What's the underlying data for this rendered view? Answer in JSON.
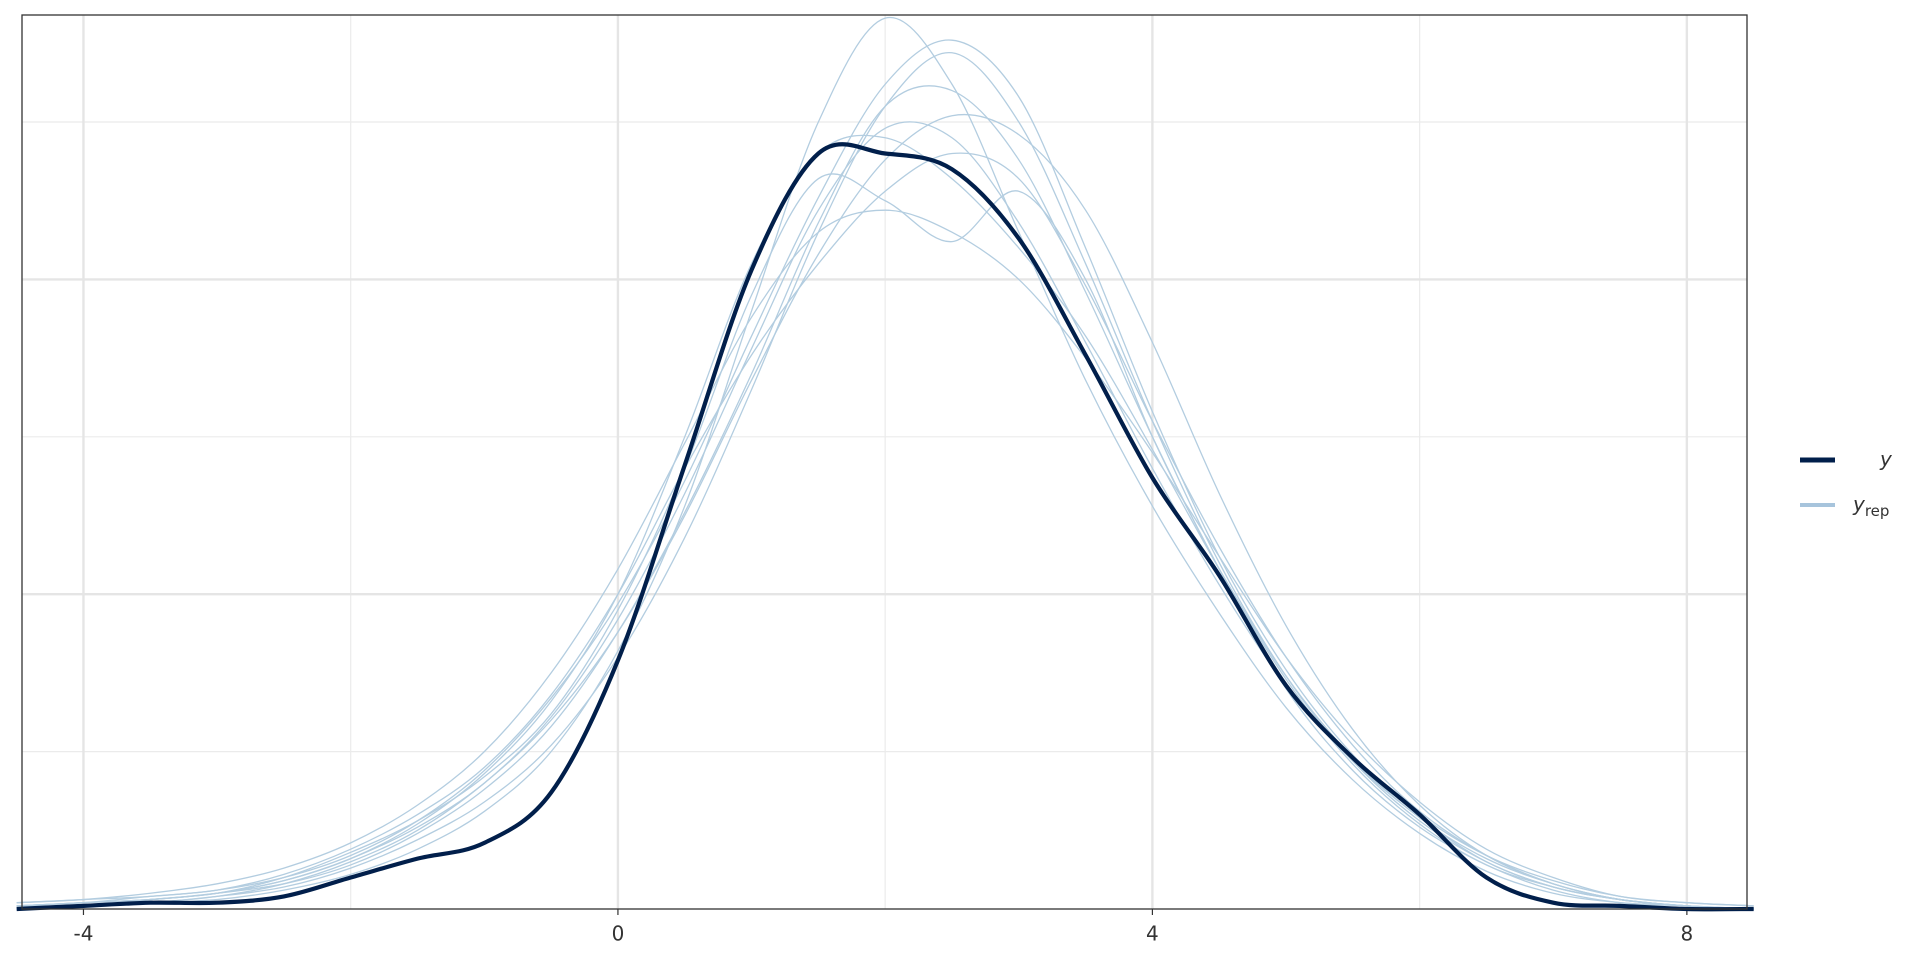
{
  "chart_data": {
    "type": "density_overlay",
    "x": [
      -4.5,
      -4,
      -3.5,
      -3,
      -2.5,
      -2,
      -1.5,
      -1,
      -0.5,
      0,
      0.5,
      1,
      1.5,
      2,
      2.5,
      3,
      3.5,
      4,
      4.5,
      5,
      5.5,
      6,
      6.5,
      7,
      7.5,
      8,
      8.5
    ],
    "xlim": [
      -4.46,
      8.45
    ],
    "xticks": [
      -4,
      0,
      4,
      8
    ],
    "xgrid_minor": [
      -2,
      2,
      6
    ],
    "ylim": [
      0,
      0.284
    ],
    "ygrid_major": [
      0.1,
      0.2
    ],
    "ygrid_minor": [
      0.05,
      0.15,
      0.25
    ],
    "legend": "right",
    "series": [
      {
        "name": "y",
        "color": "#011f4b",
        "values": [
          0,
          0.001,
          0.002,
          0.002,
          0.004,
          0.01,
          0.016,
          0.021,
          0.037,
          0.079,
          0.141,
          0.203,
          0.24,
          0.24,
          0.235,
          0.213,
          0.176,
          0.137,
          0.106,
          0.071,
          0.048,
          0.03,
          0.01,
          0.002,
          0.001,
          0,
          0
        ]
      },
      {
        "name": "y",
        "subscript": "rep",
        "color": "#b3cde0",
        "replicates": [
          [
            0.001,
            0.002,
            0.003,
            0.005,
            0.009,
            0.016,
            0.026,
            0.04,
            0.061,
            0.092,
            0.132,
            0.178,
            0.222,
            0.248,
            0.245,
            0.218,
            0.18,
            0.14,
            0.103,
            0.071,
            0.047,
            0.029,
            0.015,
            0.007,
            0.003,
            0.001,
            0.0
          ],
          [
            0.0,
            0.001,
            0.002,
            0.004,
            0.007,
            0.013,
            0.022,
            0.034,
            0.052,
            0.08,
            0.118,
            0.165,
            0.215,
            0.255,
            0.272,
            0.25,
            0.205,
            0.155,
            0.11,
            0.074,
            0.047,
            0.028,
            0.015,
            0.007,
            0.003,
            0.001,
            0.0
          ],
          [
            0.002,
            0.003,
            0.005,
            0.008,
            0.013,
            0.021,
            0.033,
            0.05,
            0.075,
            0.108,
            0.148,
            0.188,
            0.215,
            0.222,
            0.215,
            0.2,
            0.175,
            0.145,
            0.112,
            0.08,
            0.054,
            0.034,
            0.019,
            0.01,
            0.004,
            0.002,
            0.001
          ],
          [
            0.001,
            0.001,
            0.003,
            0.005,
            0.01,
            0.018,
            0.028,
            0.042,
            0.062,
            0.095,
            0.14,
            0.195,
            0.232,
            0.225,
            0.212,
            0.228,
            0.2,
            0.15,
            0.108,
            0.07,
            0.044,
            0.026,
            0.014,
            0.006,
            0.002,
            0.001,
            0.0
          ],
          [
            0.0,
            0.001,
            0.002,
            0.003,
            0.006,
            0.011,
            0.019,
            0.031,
            0.05,
            0.082,
            0.128,
            0.19,
            0.25,
            0.283,
            0.262,
            0.215,
            0.168,
            0.128,
            0.094,
            0.064,
            0.041,
            0.024,
            0.012,
            0.005,
            0.002,
            0.001,
            0.0
          ],
          [
            0.001,
            0.002,
            0.004,
            0.006,
            0.011,
            0.019,
            0.03,
            0.045,
            0.068,
            0.1,
            0.14,
            0.176,
            0.205,
            0.228,
            0.24,
            0.232,
            0.198,
            0.155,
            0.115,
            0.08,
            0.052,
            0.031,
            0.017,
            0.008,
            0.003,
            0.001,
            0.0
          ],
          [
            0.001,
            0.002,
            0.003,
            0.005,
            0.008,
            0.014,
            0.024,
            0.038,
            0.058,
            0.088,
            0.126,
            0.17,
            0.218,
            0.255,
            0.26,
            0.238,
            0.196,
            0.15,
            0.108,
            0.073,
            0.046,
            0.027,
            0.014,
            0.007,
            0.003,
            0.001,
            0.0
          ],
          [
            0.002,
            0.003,
            0.004,
            0.006,
            0.01,
            0.017,
            0.028,
            0.044,
            0.067,
            0.097,
            0.136,
            0.182,
            0.226,
            0.262,
            0.276,
            0.258,
            0.21,
            0.158,
            0.112,
            0.076,
            0.049,
            0.03,
            0.017,
            0.009,
            0.004,
            0.002,
            0.001
          ],
          [
            0.001,
            0.002,
            0.003,
            0.005,
            0.009,
            0.016,
            0.027,
            0.043,
            0.066,
            0.1,
            0.15,
            0.205,
            0.24,
            0.245,
            0.232,
            0.21,
            0.182,
            0.146,
            0.108,
            0.074,
            0.048,
            0.029,
            0.016,
            0.008,
            0.003,
            0.001,
            0.0
          ],
          [
            0.0,
            0.001,
            0.002,
            0.004,
            0.008,
            0.015,
            0.025,
            0.04,
            0.06,
            0.088,
            0.125,
            0.168,
            0.208,
            0.238,
            0.252,
            0.246,
            0.222,
            0.18,
            0.132,
            0.09,
            0.057,
            0.033,
            0.017,
            0.008,
            0.003,
            0.001,
            0.0
          ]
        ]
      }
    ]
  }
}
